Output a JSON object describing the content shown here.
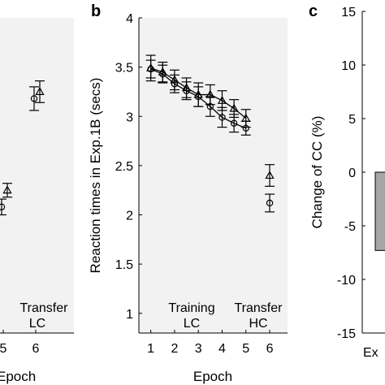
{
  "chart_data": [
    {
      "panel_letter": "",
      "type": "scatter",
      "xlabel": "Epoch",
      "x_ticks": [
        "5",
        "6"
      ],
      "markers": [
        {
          "series": "circle",
          "x": 5,
          "y": 2.08,
          "err": 0.08
        },
        {
          "series": "triangle",
          "x": 5,
          "y": 2.25,
          "err": 0.07
        },
        {
          "series": "circle",
          "x": 6,
          "y": 3.18,
          "err": 0.12
        },
        {
          "series": "triangle",
          "x": 6,
          "y": 3.25,
          "err": 0.11
        }
      ],
      "ylim": [
        0.8,
        4.0
      ],
      "annotations": [
        "Transfer",
        "LC"
      ]
    },
    {
      "panel_letter": "b",
      "type": "line",
      "xlabel": "Epoch",
      "ylabel": "Reaction times in Exp.1B (secs)",
      "xlim": [
        0.5,
        6.75
      ],
      "ylim": [
        0.8,
        4.0
      ],
      "x_ticks": [
        "1",
        "2",
        "3",
        "4",
        "5",
        "6"
      ],
      "y_ticks": [
        "1",
        "1.5",
        "2",
        "2.5",
        "3",
        "3.5",
        "4"
      ],
      "series": [
        {
          "marker": "circle",
          "x": [
            1,
            1.5,
            2,
            2.5,
            3,
            3.5,
            4,
            4.5,
            5
          ],
          "y": [
            3.48,
            3.43,
            3.33,
            3.26,
            3.2,
            3.1,
            2.99,
            2.93,
            2.88
          ],
          "err": [
            0.09,
            0.09,
            0.09,
            0.09,
            0.1,
            0.1,
            0.1,
            0.09,
            0.07
          ]
        },
        {
          "marker": "triangle",
          "x": [
            1,
            1.5,
            2,
            2.5,
            3,
            3.5,
            4,
            4.5,
            5
          ],
          "y": [
            3.49,
            3.45,
            3.37,
            3.29,
            3.22,
            3.22,
            3.16,
            3.08,
            2.98
          ],
          "err": [
            0.13,
            0.1,
            0.1,
            0.1,
            0.12,
            0.1,
            0.1,
            0.09,
            0.09
          ]
        }
      ],
      "transfer_points": [
        {
          "marker": "circle",
          "x": 6,
          "y": 2.12,
          "err": 0.09
        },
        {
          "marker": "triangle",
          "x": 6,
          "y": 2.4,
          "err": 0.11
        }
      ],
      "annotations": {
        "training_line1": "Training",
        "training_line2": "LC",
        "transfer_line1": "Transfer",
        "transfer_line2": "HC"
      }
    },
    {
      "panel_letter": "c",
      "type": "bar",
      "ylabel": "Change of CC (%)",
      "ylim": [
        -15,
        15
      ],
      "y_ticks": [
        "-15",
        "-10",
        "-5",
        "0",
        "5",
        "10",
        "15"
      ],
      "categories": [
        "Ex"
      ],
      "values": [
        -7.3
      ],
      "bar_color": "#a6a6a6"
    }
  ]
}
